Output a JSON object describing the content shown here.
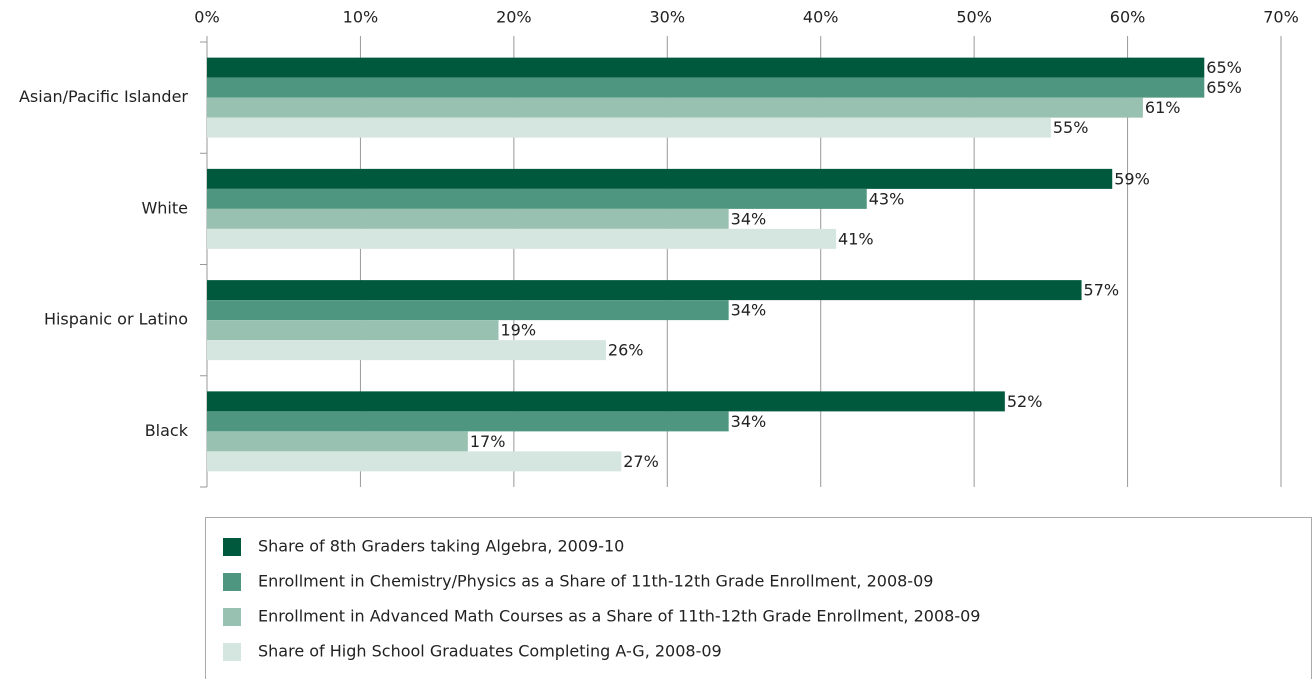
{
  "chart_data": {
    "type": "hbar",
    "categories": [
      "Asian/Pacific Islander",
      "White",
      "Hispanic or Latino",
      "Black"
    ],
    "series": [
      {
        "name": "Share of 8th Graders taking Algebra, 2009-10",
        "color": "#00583d",
        "values": [
          65,
          59,
          57,
          52
        ],
        "value_labels": [
          "65%",
          "59%",
          "57%",
          "52%"
        ]
      },
      {
        "name": "Enrollment in Chemistry/Physics as a Share of 11th-12th Grade Enrollment, 2008-09",
        "color": "#4e9680",
        "values": [
          65,
          43,
          34,
          34
        ],
        "value_labels": [
          "65%",
          "43%",
          "34%",
          "34%"
        ]
      },
      {
        "name": "Enrollment in Advanced Math Courses as a Share of 11th-12th Grade Enrollment, 2008-09",
        "color": "#99c1b2",
        "values": [
          61,
          34,
          19,
          17
        ],
        "value_labels": [
          "61%",
          "34%",
          "19%",
          "17%"
        ]
      },
      {
        "name": "Share of High School Graduates Completing A-G, 2008-09",
        "color": "#d5e6e0",
        "values": [
          55,
          41,
          26,
          27
        ],
        "value_labels": [
          "55%",
          "41%",
          "26%",
          "27%"
        ]
      }
    ],
    "xlim": [
      0,
      70
    ],
    "xticks": [
      {
        "value": 0,
        "label": "0%"
      },
      {
        "value": 10,
        "label": "10%"
      },
      {
        "value": 20,
        "label": "20%"
      },
      {
        "value": 30,
        "label": "30%"
      },
      {
        "value": 40,
        "label": "40%"
      },
      {
        "value": 50,
        "label": "50%"
      },
      {
        "value": 60,
        "label": "60%"
      },
      {
        "value": 70,
        "label": "70%"
      }
    ],
    "grid": true
  }
}
